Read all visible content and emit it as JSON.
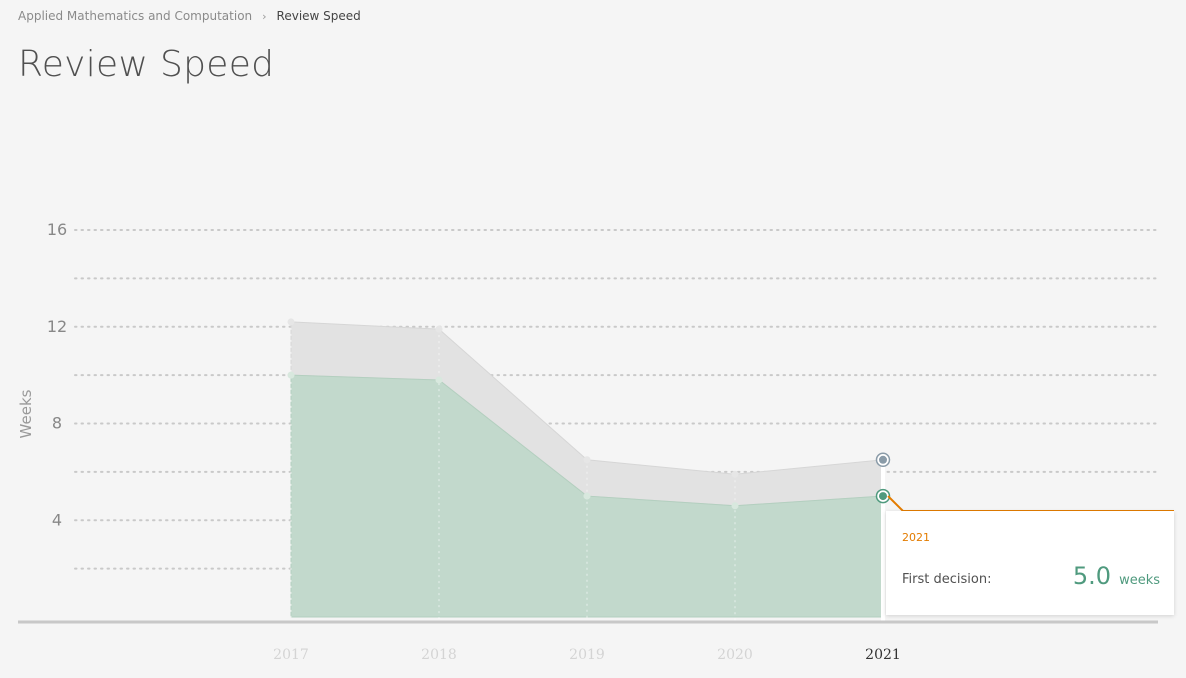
{
  "breadcrumb": {
    "parent": "Applied Mathematics and Computation",
    "separator": "›",
    "current": "Review Speed"
  },
  "page_title": "Review Speed",
  "chart_data": {
    "type": "area",
    "title": "",
    "xlabel": "",
    "ylabel": "Weeks",
    "ylim": [
      0,
      16
    ],
    "yticks": [
      4,
      8,
      12,
      16
    ],
    "grid": true,
    "x": [
      "2017",
      "2018",
      "2019",
      "2020",
      "2021"
    ],
    "series": [
      {
        "values": [
          10.0,
          9.8,
          5.0,
          4.6,
          5.0
        ]
      },
      {
        "values": [
          12.2,
          11.9,
          6.5,
          5.9,
          6.5
        ]
      }
    ],
    "highlighted_year": "2021"
  },
  "tooltip": {
    "year": "2021",
    "label": "First decision:",
    "value": "5.0",
    "unit": "weeks"
  },
  "colors": {
    "first_decision_fill": "#c2d9cc",
    "upper_band_fill": "#e2e2e2",
    "accent_orange": "#e37c00",
    "value_green": "#4f9a7e"
  }
}
